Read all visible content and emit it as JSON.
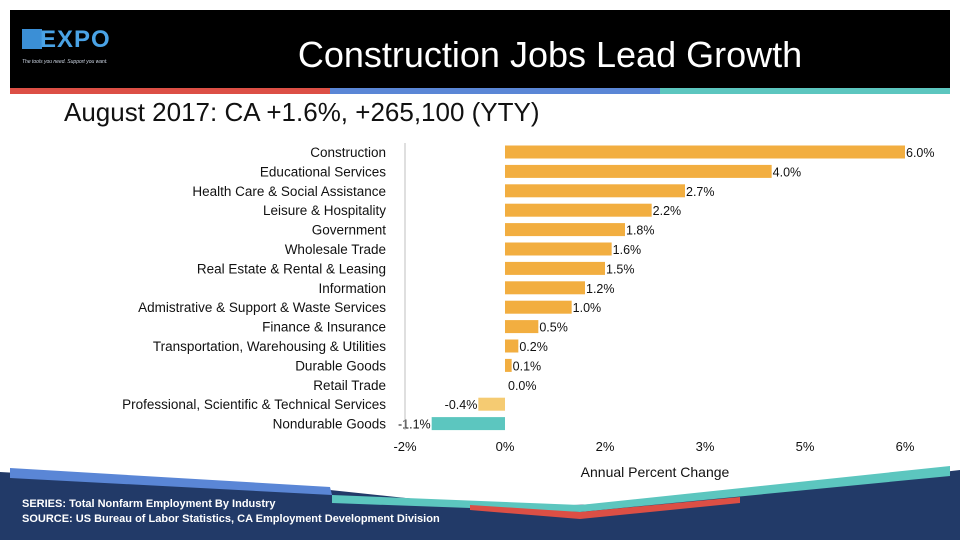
{
  "header": {
    "logo_text": "EXPO",
    "logo_tagline": "The tools you need. Support you want.",
    "title": "Construction Jobs Lead Growth"
  },
  "subtitle": "August 2017: CA +1.6%, +265,100 (YTY)",
  "footer": {
    "series": "SERIES: Total Nonfarm Employment By Industry",
    "source": "SOURCE:  US Bureau of Labor Statistics, CA Employment Development Division"
  },
  "colors": {
    "positive_bar": "#f2ae40",
    "negative_bar": "#f5cb72",
    "highlight_bar": "#5cc6bf",
    "stripe_red": "#dc4f45",
    "stripe_blue": "#5a86d6",
    "stripe_teal": "#5cc6bf",
    "footer_navy": "#223a68"
  },
  "chart_data": {
    "type": "bar",
    "orientation": "horizontal",
    "categories": [
      "Construction",
      "Educational Services",
      "Health Care & Social Assistance",
      "Leisure & Hospitality",
      "Government",
      "Wholesale Trade",
      "Real Estate & Rental & Leasing",
      "Information",
      "Admistrative & Support & Waste Services",
      "Finance & Insurance",
      "Transportation, Warehousing & Utilities",
      "Durable Goods",
      "Retail Trade",
      "Professional, Scientific & Technical Services",
      "Nondurable Goods"
    ],
    "values": [
      6.0,
      4.0,
      2.7,
      2.2,
      1.8,
      1.6,
      1.5,
      1.2,
      1.0,
      0.5,
      0.2,
      0.1,
      0.0,
      -0.4,
      -1.1
    ],
    "data_labels": [
      "6.0%",
      "4.0%",
      "2.7%",
      "2.2%",
      "1.8%",
      "1.6%",
      "1.5%",
      "1.2%",
      "1.0%",
      "0.5%",
      "0.2%",
      "0.1%",
      "0.0%",
      "-0.4%",
      "-1.1%"
    ],
    "xlabel": "Annual Percent Change",
    "xlim": [
      -1.5,
      6.0
    ],
    "x_ticks": [
      -1.5,
      0,
      1.5,
      3,
      4.5,
      6
    ],
    "x_tick_labels": [
      "-2%",
      "0%",
      "2%",
      "3%",
      "5%",
      "6%"
    ],
    "grid": false
  }
}
